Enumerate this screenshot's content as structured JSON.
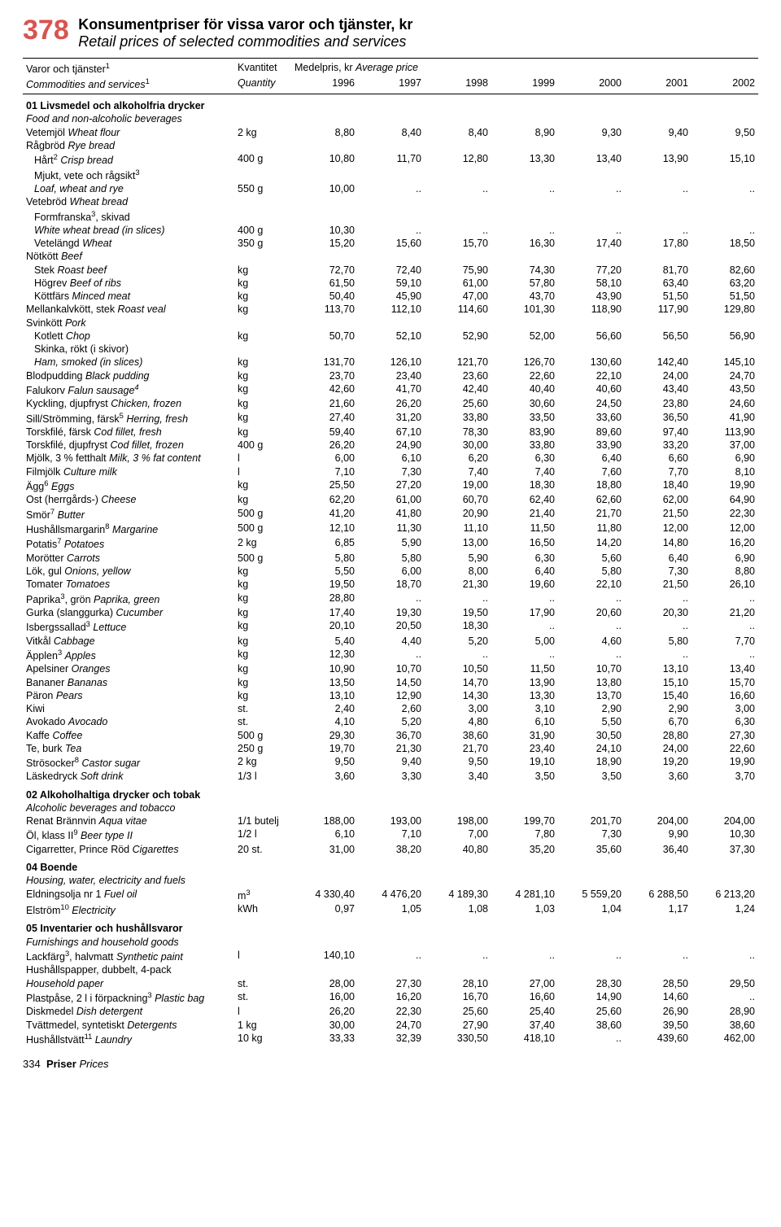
{
  "header": {
    "page_number": "378",
    "title_sv": "Konsumentpriser för vissa varor och tjänster, kr",
    "title_en": "Retail prices of selected commodities and services"
  },
  "columns": {
    "label_sv": "Varor och tjänster",
    "label_en": "Commodities and services",
    "label_sup": "1",
    "qty_sv": "Kvantitet",
    "qty_en": "Quantity",
    "price_sv": "Medelpris, kr",
    "price_en": "Average price",
    "years": [
      "1996",
      "1997",
      "1998",
      "1999",
      "2000",
      "2001",
      "2002"
    ]
  },
  "rows": [
    {
      "type": "section",
      "sv": "01 Livsmedel och alkoholfria drycker",
      "en": "Food and non-alcoholic beverages"
    },
    {
      "sv": "Vetemjöl",
      "en": "Wheat flour",
      "qty": "2 kg",
      "v": [
        "8,80",
        "8,40",
        "8,40",
        "8,90",
        "9,30",
        "9,40",
        "9,50"
      ]
    },
    {
      "sv": "Rågbröd",
      "en": "Rye bread",
      "qty": "",
      "v": [
        "",
        "",
        "",
        "",
        "",
        "",
        ""
      ]
    },
    {
      "indent": 1,
      "sv": "Hårt",
      "sup": "2",
      "en": "Crisp bread",
      "qty": "400 g",
      "v": [
        "10,80",
        "11,70",
        "12,80",
        "13,30",
        "13,40",
        "13,90",
        "15,10"
      ]
    },
    {
      "indent": 1,
      "sv": "Mjukt, vete och rågsikt",
      "sup": "3",
      "en": "",
      "qty": "",
      "v": [
        "",
        "",
        "",
        "",
        "",
        "",
        ""
      ]
    },
    {
      "indent": 1,
      "en_only": "Loaf, wheat and rye",
      "qty": "550 g",
      "v": [
        "10,00",
        "..",
        "..",
        "..",
        "..",
        "..",
        ".."
      ]
    },
    {
      "sv": "Vetebröd",
      "en": "Wheat bread",
      "qty": "",
      "v": [
        "",
        "",
        "",
        "",
        "",
        "",
        ""
      ]
    },
    {
      "indent": 1,
      "sv": "Formfranska",
      "sup": "3",
      "post": ", skivad",
      "en": "",
      "qty": "",
      "v": [
        "",
        "",
        "",
        "",
        "",
        "",
        ""
      ]
    },
    {
      "indent": 1,
      "en_only": "White wheat bread (in slices)",
      "qty": "400 g",
      "v": [
        "10,30",
        "..",
        "..",
        "..",
        "..",
        "..",
        ".."
      ]
    },
    {
      "indent": 1,
      "sv": "Vetelängd",
      "en": "Wheat",
      "qty": "350 g",
      "v": [
        "15,20",
        "15,60",
        "15,70",
        "16,30",
        "17,40",
        "17,80",
        "18,50"
      ]
    },
    {
      "sv": "Nötkött",
      "en": "Beef",
      "qty": "",
      "v": [
        "",
        "",
        "",
        "",
        "",
        "",
        ""
      ]
    },
    {
      "indent": 1,
      "sv": "Stek",
      "en": "Roast beef",
      "qty": "kg",
      "v": [
        "72,70",
        "72,40",
        "75,90",
        "74,30",
        "77,20",
        "81,70",
        "82,60"
      ]
    },
    {
      "indent": 1,
      "sv": "Högrev",
      "en": "Beef of ribs",
      "qty": "kg",
      "v": [
        "61,50",
        "59,10",
        "61,00",
        "57,80",
        "58,10",
        "63,40",
        "63,20"
      ]
    },
    {
      "indent": 1,
      "sv": "Köttfärs",
      "en": "Minced meat",
      "qty": "kg",
      "v": [
        "50,40",
        "45,90",
        "47,00",
        "43,70",
        "43,90",
        "51,50",
        "51,50"
      ]
    },
    {
      "sv": "Mellankalvkött, stek",
      "en": "Roast veal",
      "qty": "kg",
      "v": [
        "113,70",
        "112,10",
        "114,60",
        "101,30",
        "118,90",
        "117,90",
        "129,80"
      ]
    },
    {
      "sv": "Svinkött",
      "en": "Pork",
      "qty": "",
      "v": [
        "",
        "",
        "",
        "",
        "",
        "",
        ""
      ]
    },
    {
      "indent": 1,
      "sv": "Kotlett",
      "en": "Chop",
      "qty": "kg",
      "v": [
        "50,70",
        "52,10",
        "52,90",
        "52,00",
        "56,60",
        "56,50",
        "56,90"
      ]
    },
    {
      "indent": 1,
      "sv": "Skinka, rökt (i skivor)",
      "en": "",
      "qty": "",
      "v": [
        "",
        "",
        "",
        "",
        "",
        "",
        ""
      ]
    },
    {
      "indent": 1,
      "en_only": "Ham, smoked (in slices)",
      "qty": "kg",
      "v": [
        "131,70",
        "126,10",
        "121,70",
        "126,70",
        "130,60",
        "142,40",
        "145,10"
      ]
    },
    {
      "sv": "Blodpudding",
      "en": "Black pudding",
      "qty": "kg",
      "v": [
        "23,70",
        "23,40",
        "23,60",
        "22,60",
        "22,10",
        "24,00",
        "24,70"
      ]
    },
    {
      "sv": "Falukorv",
      "en": "Falun sausage",
      "en_sup": "4",
      "qty": "kg",
      "v": [
        "42,60",
        "41,70",
        "42,40",
        "40,40",
        "40,60",
        "43,40",
        "43,50"
      ]
    },
    {
      "sv": "Kyckling, djupfryst",
      "en": "Chicken, frozen",
      "qty": "kg",
      "v": [
        "21,60",
        "26,20",
        "25,60",
        "30,60",
        "24,50",
        "23,80",
        "24,60"
      ]
    },
    {
      "sv": "Sill/Strömming, färsk",
      "sup": "5",
      "en": "Herring, fresh",
      "qty": "kg",
      "v": [
        "27,40",
        "31,20",
        "33,80",
        "33,50",
        "33,60",
        "36,50",
        "41,90"
      ]
    },
    {
      "sv": "Torskfilé, färsk",
      "en": "Cod fillet, fresh",
      "qty": "kg",
      "v": [
        "59,40",
        "67,10",
        "78,30",
        "83,90",
        "89,60",
        "97,40",
        "113,90"
      ]
    },
    {
      "sv": "Torskfilé, djupfryst",
      "en": "Cod fillet, frozen",
      "qty": "400 g",
      "v": [
        "26,20",
        "24,90",
        "30,00",
        "33,80",
        "33,90",
        "33,20",
        "37,00"
      ]
    },
    {
      "sv": "Mjölk, 3 % fetthalt",
      "en": "Milk, 3 % fat content",
      "qty": "l",
      "v": [
        "6,00",
        "6,10",
        "6,20",
        "6,30",
        "6,40",
        "6,60",
        "6,90"
      ]
    },
    {
      "sv": "Filmjölk",
      "en": "Culture milk",
      "qty": "l",
      "v": [
        "7,10",
        "7,30",
        "7,40",
        "7,40",
        "7,60",
        "7,70",
        "8,10"
      ]
    },
    {
      "sv": "Ägg",
      "sup": "6",
      "en": "Eggs",
      "qty": "kg",
      "v": [
        "25,50",
        "27,20",
        "19,00",
        "18,30",
        "18,80",
        "18,40",
        "19,90"
      ]
    },
    {
      "sv": "Ost (herrgårds-)",
      "en": "Cheese",
      "qty": "kg",
      "v": [
        "62,20",
        "61,00",
        "60,70",
        "62,40",
        "62,60",
        "62,00",
        "64,90"
      ]
    },
    {
      "sv": "Smör",
      "sup": "7",
      "en": "Butter",
      "qty": "500 g",
      "v": [
        "41,20",
        "41,80",
        "20,90",
        "21,40",
        "21,70",
        "21,50",
        "22,30"
      ]
    },
    {
      "sv": "Hushållsmargarin",
      "sup": "8",
      "en": "Margarine",
      "qty": "500 g",
      "v": [
        "12,10",
        "11,30",
        "11,10",
        "11,50",
        "11,80",
        "12,00",
        "12,00"
      ]
    },
    {
      "sv": "Potatis",
      "sup": "7",
      "en": "Potatoes",
      "qty": "2 kg",
      "v": [
        "6,85",
        "5,90",
        "13,00",
        "16,50",
        "14,20",
        "14,80",
        "16,20"
      ]
    },
    {
      "sv": "Morötter",
      "en": "Carrots",
      "qty": "500 g",
      "v": [
        "5,80",
        "5,80",
        "5,90",
        "6,30",
        "5,60",
        "6,40",
        "6,90"
      ]
    },
    {
      "sv": "Lök, gul",
      "en": "Onions, yellow",
      "qty": "kg",
      "v": [
        "5,50",
        "6,00",
        "8,00",
        "6,40",
        "5,80",
        "7,30",
        "8,80"
      ]
    },
    {
      "sv": "Tomater",
      "en": "Tomatoes",
      "qty": "kg",
      "v": [
        "19,50",
        "18,70",
        "21,30",
        "19,60",
        "22,10",
        "21,50",
        "26,10"
      ]
    },
    {
      "sv": "Paprika",
      "sup": "3",
      "post": ", grön",
      "en": "Paprika, green",
      "qty": "kg",
      "v": [
        "28,80",
        "..",
        "..",
        "..",
        "..",
        "..",
        ".."
      ]
    },
    {
      "sv": "Gurka (slanggurka)",
      "en": "Cucumber",
      "qty": "kg",
      "v": [
        "17,40",
        "19,30",
        "19,50",
        "17,90",
        "20,60",
        "20,30",
        "21,20"
      ]
    },
    {
      "sv": "Isbergssallad",
      "sup": "3",
      "en": "Lettuce",
      "qty": "kg",
      "v": [
        "20,10",
        "20,50",
        "18,30",
        "..",
        "..",
        "..",
        ".."
      ]
    },
    {
      "sv": "Vitkål",
      "en": "Cabbage",
      "qty": "kg",
      "v": [
        "5,40",
        "4,40",
        "5,20",
        "5,00",
        "4,60",
        "5,80",
        "7,70"
      ]
    },
    {
      "sv": "Äpplen",
      "sup": "3",
      "en": "Apples",
      "qty": "kg",
      "v": [
        "12,30",
        "..",
        "..",
        "..",
        "..",
        "..",
        ".."
      ]
    },
    {
      "sv": "Apelsiner",
      "en": "Oranges",
      "qty": "kg",
      "v": [
        "10,90",
        "10,70",
        "10,50",
        "11,50",
        "10,70",
        "13,10",
        "13,40"
      ]
    },
    {
      "sv": "Bananer",
      "en": "Bananas",
      "qty": "kg",
      "v": [
        "13,50",
        "14,50",
        "14,70",
        "13,90",
        "13,80",
        "15,10",
        "15,70"
      ]
    },
    {
      "sv": "Päron",
      "en": "Pears",
      "qty": "kg",
      "v": [
        "13,10",
        "12,90",
        "14,30",
        "13,30",
        "13,70",
        "15,40",
        "16,60"
      ]
    },
    {
      "sv": "Kiwi",
      "en": "",
      "qty": "st.",
      "v": [
        "2,40",
        "2,60",
        "3,00",
        "3,10",
        "2,90",
        "2,90",
        "3,00"
      ]
    },
    {
      "sv": "Avokado",
      "en": "Avocado",
      "qty": "st.",
      "v": [
        "4,10",
        "5,20",
        "4,80",
        "6,10",
        "5,50",
        "6,70",
        "6,30"
      ]
    },
    {
      "sv": "Kaffe",
      "en": "Coffee",
      "qty": "500 g",
      "v": [
        "29,30",
        "36,70",
        "38,60",
        "31,90",
        "30,50",
        "28,80",
        "27,30"
      ]
    },
    {
      "sv": "Te, burk",
      "en": "Tea",
      "qty": "250 g",
      "v": [
        "19,70",
        "21,30",
        "21,70",
        "23,40",
        "24,10",
        "24,00",
        "22,60"
      ]
    },
    {
      "sv": "Strösocker",
      "sup": "8",
      "en": "Castor sugar",
      "qty": "2 kg",
      "v": [
        "9,50",
        "9,40",
        "9,50",
        "19,10",
        "18,90",
        "19,20",
        "19,90"
      ]
    },
    {
      "sv": "Läskedryck",
      "en": "Soft drink",
      "qty": "1/3 l",
      "v": [
        "3,60",
        "3,30",
        "3,40",
        "3,50",
        "3,50",
        "3,60",
        "3,70"
      ]
    },
    {
      "type": "section",
      "sv": "02 Alkoholhaltiga drycker och tobak",
      "en": "Alcoholic beverages and tobacco"
    },
    {
      "sv": "Renat Brännvin",
      "en": "Aqua vitae",
      "qty": "1/1 butelj",
      "v": [
        "188,00",
        "193,00",
        "198,00",
        "199,70",
        "201,70",
        "204,00",
        "204,00"
      ]
    },
    {
      "sv": "Öl, klass II",
      "sup": "9",
      "en": "Beer type II",
      "qty": "1/2 l",
      "v": [
        "6,10",
        "7,10",
        "7,00",
        "7,80",
        "7,30",
        "9,90",
        "10,30"
      ]
    },
    {
      "sv": "Cigarretter, Prince Röd",
      "en": "Cigarettes",
      "qty": "20 st.",
      "v": [
        "31,00",
        "38,20",
        "40,80",
        "35,20",
        "35,60",
        "36,40",
        "37,30"
      ]
    },
    {
      "type": "section",
      "sv": "04 Boende",
      "en": "Housing, water, electricity and fuels"
    },
    {
      "sv": "Eldningsolja nr 1",
      "en": "Fuel oil",
      "qty_html": "m<sup>3</sup>",
      "v": [
        "4 330,40",
        "4 476,20",
        "4 189,30",
        "4 281,10",
        "5 559,20",
        "6 288,50",
        "6 213,20"
      ]
    },
    {
      "sv": "Elström",
      "sup": "10",
      "en": "Electricity",
      "qty": "kWh",
      "v": [
        "0,97",
        "1,05",
        "1,08",
        "1,03",
        "1,04",
        "1,17",
        "1,24"
      ]
    },
    {
      "type": "section",
      "sv": "05 Inventarier och hushållsvaror",
      "en": "Furnishings and household goods"
    },
    {
      "sv": "Lackfärg",
      "sup": "3",
      "post": ", halvmatt",
      "en": "Synthetic paint",
      "qty": "l",
      "v": [
        "140,10",
        "..",
        "..",
        "..",
        "..",
        "..",
        ".."
      ]
    },
    {
      "sv": "Hushållspapper, dubbelt, 4-pack",
      "en": "",
      "qty": "",
      "v": [
        "",
        "",
        "",
        "",
        "",
        "",
        ""
      ]
    },
    {
      "en_only": "Household paper",
      "qty": "st.",
      "v": [
        "28,00",
        "27,30",
        "28,10",
        "27,00",
        "28,30",
        "28,50",
        "29,50"
      ]
    },
    {
      "sv": "Plastpåse, 2 l i förpackning",
      "sup": "3",
      "en": "Plastic bag",
      "qty": "st.",
      "v": [
        "16,00",
        "16,20",
        "16,70",
        "16,60",
        "14,90",
        "14,60",
        ".."
      ]
    },
    {
      "sv": "Diskmedel",
      "en": "Dish detergent",
      "qty": "l",
      "v": [
        "26,20",
        "22,30",
        "25,60",
        "25,40",
        "25,60",
        "26,90",
        "28,90"
      ]
    },
    {
      "sv": "Tvättmedel, syntetiskt",
      "en": "Detergents",
      "qty": "1 kg",
      "v": [
        "30,00",
        "24,70",
        "27,90",
        "37,40",
        "38,60",
        "39,50",
        "38,60"
      ]
    },
    {
      "sv": "Hushållstvätt",
      "sup": "11",
      "en": "Laundry",
      "qty": "10 kg",
      "v": [
        "33,33",
        "32,39",
        "330,50",
        "418,10",
        "..",
        "439,60",
        "462,00"
      ]
    }
  ],
  "footer": {
    "page": "334",
    "label_sv": "Priser",
    "label_en": "Prices"
  }
}
